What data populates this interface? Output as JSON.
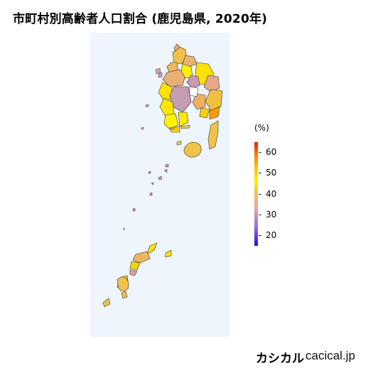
{
  "title": "市町村別高齢者人口割合 (鹿児島県, 2020年)",
  "legend": {
    "unit": "(%)",
    "ticks": [
      "60",
      "50",
      "40",
      "30",
      "20"
    ],
    "range": [
      15,
      65
    ],
    "colors": [
      "#2a00ff",
      "#9b6fd6",
      "#e8a3a8",
      "#eec35a",
      "#fff000",
      "#ffc000",
      "#ff6a00",
      "#ff1a00"
    ]
  },
  "map": {
    "background": "#eef5fd",
    "border_color": "#333333"
  },
  "footer": {
    "brand": "カシカル",
    "site": "cacical.jp"
  }
}
